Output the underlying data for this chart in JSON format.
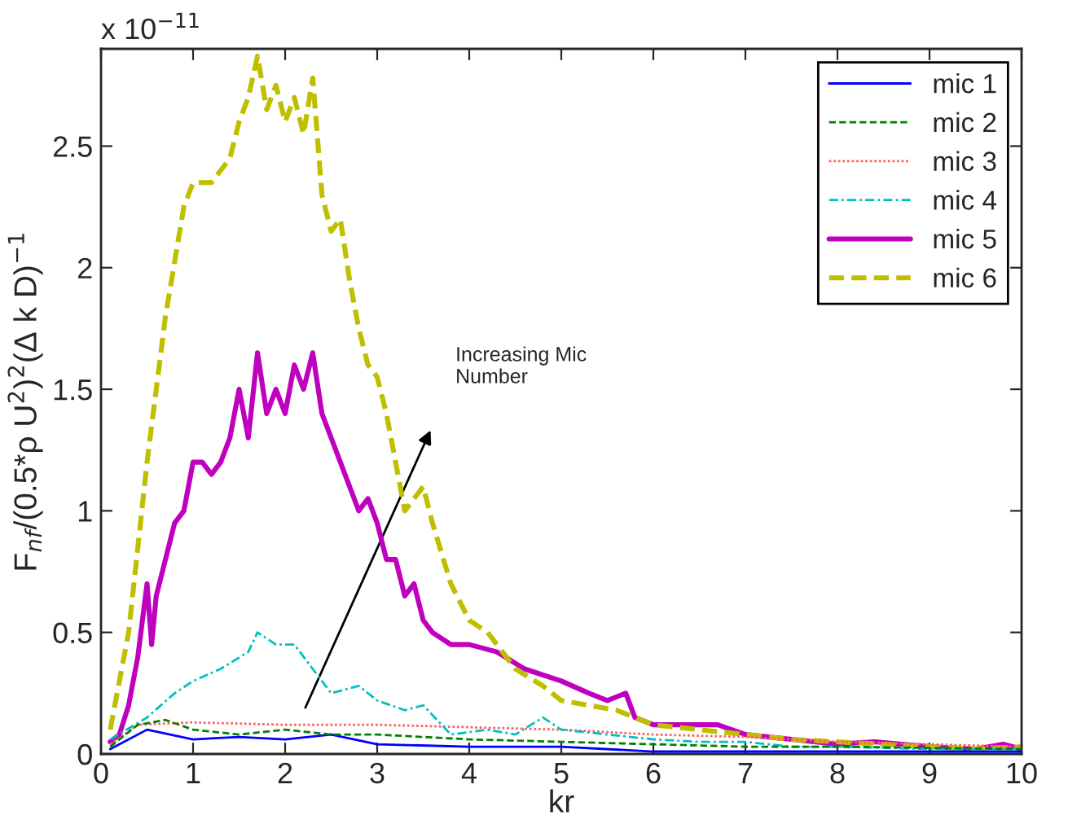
{
  "chart_data": {
    "type": "line",
    "xlabel": "kr",
    "ylabel": "F$_{nf}$/(0.5*ρ U$^{2}$)$^{2}$(Δ k D)$^{−1}$",
    "xlim": [
      0,
      10
    ],
    "xticks": [
      0,
      1,
      2,
      3,
      4,
      5,
      6,
      7,
      8,
      9,
      10
    ],
    "ylim": [
      0,
      2.9
    ],
    "yticks": [
      0,
      0.5,
      1,
      1.5,
      2,
      2.5
    ],
    "grid": false,
    "legend": "top right",
    "marker": "none",
    "annotations": [
      "x 10$^{−11}$",
      "Increasing Mic\nNumber"
    ],
    "series": [
      {
        "name": "mic 1",
        "color": "#0000ff",
        "line_style": "solid",
        "x": [
          0.1,
          0.5,
          1,
          1.5,
          2,
          2.5,
          3,
          4,
          5,
          6,
          7,
          8,
          10
        ],
        "values": [
          0.02,
          0.1,
          0.06,
          0.07,
          0.06,
          0.08,
          0.04,
          0.03,
          0.03,
          0.01,
          0.01,
          0.01,
          0.01
        ]
      },
      {
        "name": "mic 2",
        "color": "#008000",
        "line_style": "dashed",
        "x": [
          0.1,
          0.4,
          0.7,
          1,
          1.5,
          2,
          2.5,
          3,
          4,
          5,
          6,
          7,
          8,
          10
        ],
        "values": [
          0.03,
          0.12,
          0.14,
          0.1,
          0.08,
          0.1,
          0.08,
          0.08,
          0.06,
          0.05,
          0.04,
          0.03,
          0.03,
          0.02
        ]
      },
      {
        "name": "mic 3",
        "color": "#ff6060",
        "line_style": "dotted",
        "x": [
          0.1,
          0.4,
          1,
          2,
          3,
          4,
          5,
          6,
          7,
          8,
          9,
          10
        ],
        "values": [
          0.04,
          0.12,
          0.13,
          0.12,
          0.12,
          0.11,
          0.1,
          0.08,
          0.07,
          0.05,
          0.04,
          0.03
        ]
      },
      {
        "name": "mic 4",
        "color": "#00bfbf",
        "line_style": "dashdot",
        "x": [
          0.1,
          0.5,
          0.8,
          1,
          1.3,
          1.6,
          1.7,
          1.9,
          2.1,
          2.3,
          2.5,
          2.8,
          3,
          3.3,
          3.5,
          3.8,
          4.2,
          4.5,
          4.8,
          5,
          5.5,
          6,
          6.5,
          7,
          7.5,
          8,
          9,
          10
        ],
        "values": [
          0.06,
          0.15,
          0.25,
          0.3,
          0.35,
          0.42,
          0.5,
          0.45,
          0.45,
          0.35,
          0.25,
          0.28,
          0.22,
          0.18,
          0.2,
          0.08,
          0.1,
          0.08,
          0.15,
          0.1,
          0.08,
          0.06,
          0.05,
          0.05,
          0.03,
          0.03,
          0.02,
          0.02
        ]
      },
      {
        "name": "mic 5",
        "color": "#bf00bf",
        "line_style": "solid",
        "x": [
          0.1,
          0.2,
          0.3,
          0.4,
          0.5,
          0.55,
          0.6,
          0.7,
          0.8,
          0.9,
          1,
          1.1,
          1.2,
          1.3,
          1.4,
          1.5,
          1.6,
          1.7,
          1.8,
          1.9,
          2,
          2.1,
          2.2,
          2.3,
          2.4,
          2.5,
          2.6,
          2.7,
          2.8,
          2.9,
          3,
          3.1,
          3.2,
          3.3,
          3.4,
          3.5,
          3.6,
          3.8,
          4,
          4.3,
          4.6,
          5,
          5.3,
          5.5,
          5.7,
          5.8,
          6,
          6.4,
          6.7,
          7,
          7.5,
          8,
          8.4,
          9,
          9.5,
          9.8,
          10
        ],
        "values": [
          0.05,
          0.08,
          0.2,
          0.4,
          0.7,
          0.45,
          0.65,
          0.8,
          0.95,
          1,
          1.2,
          1.2,
          1.15,
          1.2,
          1.3,
          1.5,
          1.3,
          1.65,
          1.4,
          1.5,
          1.4,
          1.6,
          1.5,
          1.65,
          1.4,
          1.3,
          1.2,
          1.1,
          1,
          1.05,
          0.95,
          0.8,
          0.8,
          0.65,
          0.7,
          0.55,
          0.5,
          0.45,
          0.45,
          0.42,
          0.35,
          0.3,
          0.25,
          0.22,
          0.25,
          0.15,
          0.12,
          0.12,
          0.12,
          0.08,
          0.06,
          0.04,
          0.05,
          0.03,
          0.02,
          0.04,
          0.02
        ]
      },
      {
        "name": "mic 6",
        "color": "#bfbf00",
        "line_style": "dashed",
        "x": [
          0.1,
          0.3,
          0.5,
          0.7,
          0.9,
          1,
          1.2,
          1.4,
          1.5,
          1.6,
          1.7,
          1.8,
          1.9,
          2,
          2.1,
          2.2,
          2.3,
          2.4,
          2.5,
          2.6,
          2.7,
          2.8,
          2.9,
          3,
          3.1,
          3.2,
          3.3,
          3.5,
          3.6,
          3.8,
          4,
          4.2,
          4.5,
          4.8,
          5,
          5.3,
          5.6,
          6,
          6.5,
          7,
          7.5,
          8,
          8.5,
          9,
          9.5,
          10
        ],
        "values": [
          0.1,
          0.5,
          1.2,
          1.8,
          2.25,
          2.35,
          2.35,
          2.45,
          2.6,
          2.7,
          2.87,
          2.65,
          2.75,
          2.6,
          2.7,
          2.55,
          2.78,
          2.3,
          2.15,
          2.2,
          1.95,
          1.75,
          1.6,
          1.55,
          1.4,
          1.2,
          1,
          1.1,
          0.95,
          0.7,
          0.55,
          0.5,
          0.35,
          0.28,
          0.22,
          0.2,
          0.18,
          0.12,
          0.1,
          0.08,
          0.06,
          0.05,
          0.04,
          0.03,
          0.02,
          0.03
        ]
      }
    ]
  }
}
